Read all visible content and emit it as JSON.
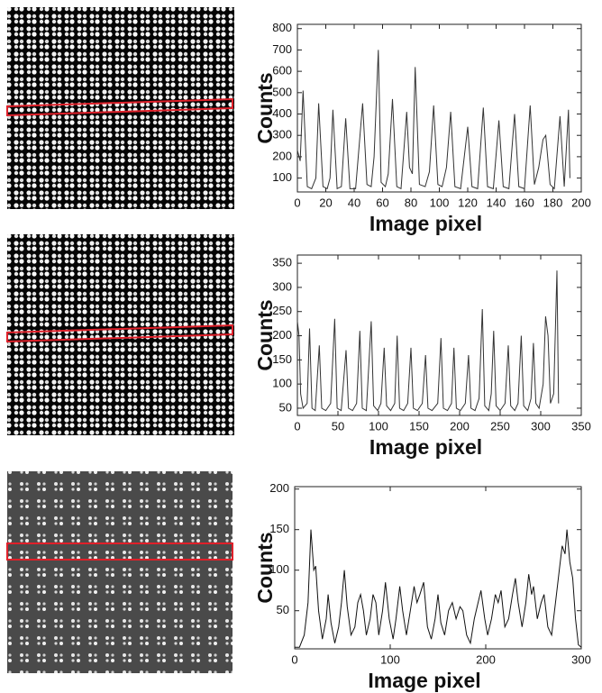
{
  "chart_data": [
    {
      "type": "line",
      "ylabel": "Counts",
      "xlabel": "Image pixel",
      "color": "#333333",
      "xlim": [
        0,
        200
      ],
      "ylim": [
        35,
        820
      ],
      "xticks": [
        0,
        20,
        40,
        60,
        80,
        100,
        120,
        140,
        160,
        180,
        200
      ],
      "yticks": [
        100,
        200,
        300,
        400,
        500,
        600,
        700,
        800
      ],
      "x": [
        0,
        2,
        4,
        7,
        10,
        13,
        15,
        18,
        21,
        23,
        25,
        28,
        31,
        34,
        37,
        41,
        46,
        49,
        52,
        54,
        57,
        59,
        62,
        64,
        67,
        70,
        73,
        77,
        79,
        81,
        83,
        86,
        90,
        93,
        96,
        99,
        102,
        105,
        108,
        111,
        115,
        120,
        123,
        127,
        131,
        134,
        138,
        142,
        145,
        149,
        153,
        156,
        160,
        164,
        167,
        170,
        173,
        175,
        178,
        181,
        185,
        188,
        191,
        192
      ],
      "values": [
        230,
        180,
        510,
        60,
        50,
        100,
        450,
        60,
        50,
        100,
        420,
        50,
        60,
        380,
        50,
        50,
        450,
        70,
        60,
        200,
        700,
        80,
        60,
        120,
        470,
        60,
        50,
        410,
        150,
        120,
        620,
        70,
        60,
        130,
        440,
        70,
        60,
        150,
        410,
        60,
        50,
        340,
        60,
        50,
        430,
        60,
        50,
        370,
        60,
        50,
        400,
        60,
        50,
        440,
        70,
        150,
        280,
        300,
        70,
        50,
        390,
        60,
        420,
        100
      ]
    },
    {
      "type": "line",
      "ylabel": "Counts",
      "xlabel": "Image pixel",
      "color": "#333333",
      "xlim": [
        0,
        350
      ],
      "ylim": [
        35,
        367
      ],
      "xticks": [
        0,
        50,
        100,
        150,
        200,
        250,
        300,
        350
      ],
      "yticks": [
        50,
        100,
        150,
        200,
        250,
        300,
        350
      ],
      "x": [
        0,
        2,
        4,
        7,
        12,
        15,
        18,
        22,
        27,
        30,
        35,
        41,
        46,
        49,
        54,
        60,
        63,
        68,
        73,
        77,
        80,
        85,
        91,
        94,
        99,
        103,
        107,
        110,
        115,
        120,
        123,
        126,
        131,
        136,
        140,
        143,
        148,
        154,
        158,
        161,
        166,
        173,
        177,
        180,
        185,
        190,
        193,
        196,
        201,
        207,
        211,
        214,
        219,
        224,
        228,
        231,
        236,
        239,
        242,
        245,
        250,
        256,
        260,
        263,
        268,
        272,
        276,
        279,
        284,
        288,
        291,
        294,
        298,
        303,
        306,
        309,
        312,
        316,
        320,
        322
      ],
      "values": [
        230,
        200,
        80,
        50,
        60,
        215,
        50,
        45,
        180,
        50,
        45,
        60,
        235,
        50,
        45,
        170,
        50,
        45,
        60,
        210,
        50,
        45,
        230,
        55,
        45,
        60,
        175,
        55,
        45,
        60,
        200,
        50,
        45,
        60,
        175,
        50,
        45,
        60,
        160,
        50,
        45,
        60,
        195,
        50,
        45,
        60,
        175,
        50,
        45,
        60,
        160,
        50,
        45,
        70,
        255,
        55,
        45,
        80,
        210,
        55,
        45,
        60,
        180,
        55,
        45,
        60,
        200,
        55,
        45,
        70,
        185,
        60,
        50,
        100,
        240,
        200,
        60,
        80,
        335,
        60
      ]
    },
    {
      "type": "line",
      "ylabel": "Counts",
      "xlabel": "Image pixel",
      "color": "#111111",
      "xlim": [
        0,
        300
      ],
      "ylim": [
        3,
        203
      ],
      "xticks": [
        0,
        100,
        200,
        300
      ],
      "yticks": [
        50,
        100,
        150,
        200
      ],
      "x": [
        0,
        5,
        10,
        14,
        17,
        20,
        22,
        25,
        29,
        33,
        35,
        38,
        42,
        46,
        49,
        52,
        55,
        59,
        63,
        66,
        69,
        72,
        75,
        79,
        82,
        85,
        88,
        92,
        95,
        99,
        103,
        106,
        110,
        113,
        117,
        121,
        125,
        128,
        131,
        135,
        139,
        143,
        147,
        150,
        153,
        157,
        161,
        165,
        169,
        173,
        176,
        180,
        184,
        188,
        192,
        195,
        199,
        202,
        206,
        210,
        213,
        216,
        220,
        224,
        228,
        231,
        234,
        238,
        242,
        245,
        248,
        250,
        254,
        258,
        261,
        265,
        269,
        273,
        277,
        280,
        283,
        285,
        288,
        291,
        294,
        297,
        300
      ],
      "values": [
        5,
        5,
        20,
        60,
        150,
        100,
        105,
        50,
        15,
        40,
        70,
        35,
        10,
        30,
        60,
        100,
        55,
        20,
        30,
        60,
        70,
        50,
        20,
        40,
        70,
        60,
        20,
        50,
        85,
        40,
        15,
        40,
        80,
        50,
        20,
        50,
        80,
        60,
        70,
        85,
        30,
        15,
        40,
        70,
        35,
        20,
        50,
        60,
        40,
        55,
        50,
        20,
        10,
        40,
        60,
        75,
        40,
        20,
        40,
        70,
        60,
        75,
        30,
        40,
        70,
        90,
        60,
        30,
        60,
        95,
        70,
        80,
        40,
        60,
        70,
        30,
        20,
        60,
        100,
        130,
        120,
        150,
        110,
        90,
        40,
        8,
        5
      ]
    }
  ]
}
